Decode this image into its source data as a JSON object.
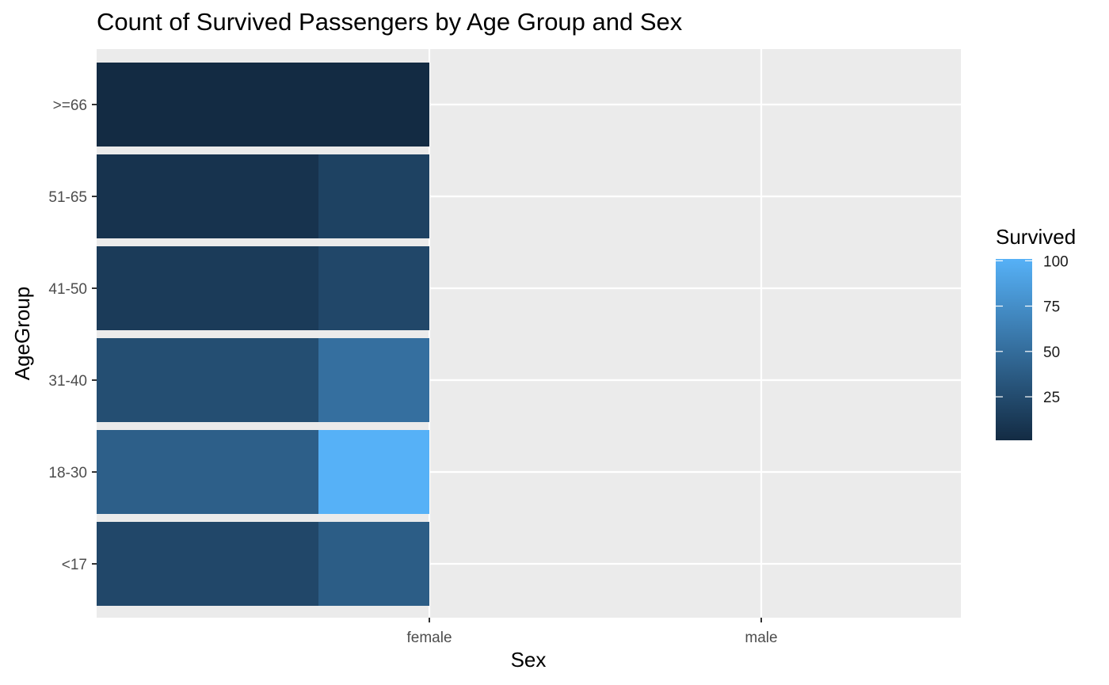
{
  "chart_data": {
    "type": "heatmap",
    "title": "Count of Survived Passengers by Age Group and Sex",
    "xlabel": "Sex",
    "ylabel": "AgeGroup",
    "x_categories": [
      "female",
      "male"
    ],
    "y_categories": [
      "<17",
      "18-30",
      "31-40",
      "41-50",
      "51-65",
      ">=66"
    ],
    "grid": true,
    "legend": {
      "title": "Survived",
      "position": "right",
      "range": [
        1,
        101
      ],
      "breaks": [
        25,
        50,
        75,
        100
      ],
      "low_color": "#132b43",
      "high_color": "#56b1f7"
    },
    "cells": [
      {
        "x": "female",
        "y": "<17",
        "x_span": [
          0.0,
          1.0
        ],
        "value": 22
      },
      {
        "x": "female",
        "y": "<17",
        "x_span": [
          0.6667,
          1.0
        ],
        "value": 38
      },
      {
        "x": "female",
        "y": "18-30",
        "x_span": [
          0.0,
          1.0
        ],
        "value": 40
      },
      {
        "x": "female",
        "y": "18-30",
        "x_span": [
          0.6667,
          1.0
        ],
        "value": 101
      },
      {
        "x": "female",
        "y": "31-40",
        "x_span": [
          0.0,
          1.0
        ],
        "value": 27
      },
      {
        "x": "female",
        "y": "31-40",
        "x_span": [
          0.6667,
          1.0
        ],
        "value": 52
      },
      {
        "x": "female",
        "y": "41-50",
        "x_span": [
          0.0,
          1.0
        ],
        "value": 13
      },
      {
        "x": "female",
        "y": "41-50",
        "x_span": [
          0.6667,
          1.0
        ],
        "value": 22
      },
      {
        "x": "female",
        "y": "51-65",
        "x_span": [
          0.0,
          1.0
        ],
        "value": 7
      },
      {
        "x": "female",
        "y": "51-65",
        "x_span": [
          0.6667,
          1.0
        ],
        "value": 18
      },
      {
        "x": "female",
        "y": ">=66",
        "x_span": [
          0.0,
          1.0
        ],
        "value": 1
      }
    ]
  }
}
